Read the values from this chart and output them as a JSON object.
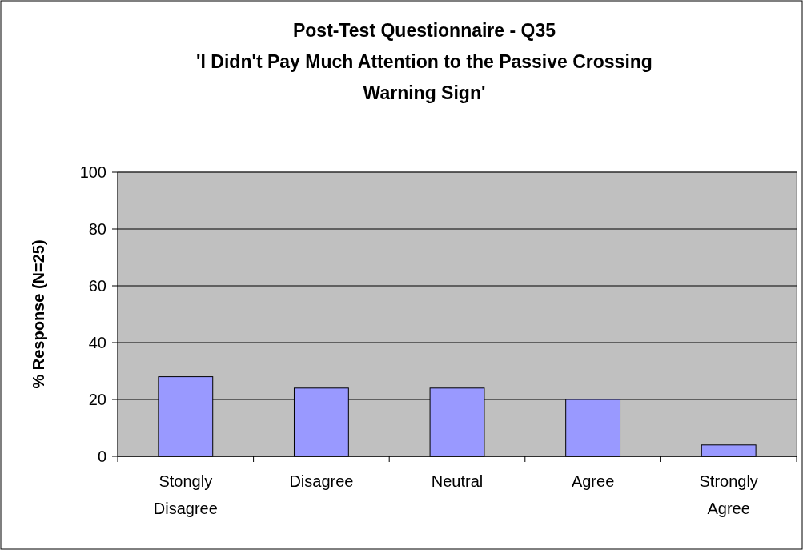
{
  "chart_data": {
    "type": "bar",
    "title": "Post-Test Questionnaire - Q35\n'I Didn't Pay Much Attention to the Passive Crossing\nWarning Sign'",
    "ylabel": "% Response (N=25)",
    "categories": [
      "Stongly Disagree",
      "Disagree",
      "Neutral",
      "Agree",
      "Strongly Agree"
    ],
    "values": [
      28,
      24,
      24,
      20,
      4
    ],
    "color": "#9999ff",
    "ylim": [
      0,
      100
    ],
    "yticks": [
      0,
      20,
      40,
      60,
      80,
      100
    ],
    "grid": "y"
  }
}
